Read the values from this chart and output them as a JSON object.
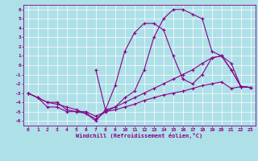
{
  "xlabel": "Windchill (Refroidissement éolien,°C)",
  "xlim": [
    -0.5,
    23.5
  ],
  "ylim": [
    -6.5,
    6.5
  ],
  "xticks": [
    0,
    1,
    2,
    3,
    4,
    5,
    6,
    7,
    8,
    9,
    10,
    11,
    12,
    13,
    14,
    15,
    16,
    17,
    18,
    19,
    20,
    21,
    22,
    23
  ],
  "yticks": [
    -6,
    -5,
    -4,
    -3,
    -2,
    -1,
    0,
    1,
    2,
    3,
    4,
    5,
    6
  ],
  "bg_color": "#aee0e8",
  "line_color": "#880088",
  "grid_color": "#ffffff",
  "line1_x": [
    0,
    1,
    2,
    3,
    4,
    5,
    6,
    7,
    8,
    9,
    10,
    11,
    12,
    13,
    14,
    15,
    16,
    17,
    18,
    19,
    20,
    21,
    22,
    23
  ],
  "line1_y": [
    -3.0,
    -3.5,
    -4.5,
    -4.5,
    -5.0,
    -5.0,
    -5.2,
    -5.8,
    -5.0,
    -4.8,
    -4.5,
    -4.2,
    -3.8,
    -3.5,
    -3.2,
    -3.0,
    -2.8,
    -2.5,
    -2.2,
    -2.0,
    -1.8,
    -2.5,
    -2.3,
    -2.4
  ],
  "line2_x": [
    0,
    1,
    2,
    3,
    4,
    5,
    6,
    7,
    8,
    9,
    10,
    11,
    12,
    13,
    14,
    15,
    16,
    17,
    18,
    19,
    20,
    21,
    22,
    23
  ],
  "line2_y": [
    -3.0,
    -3.5,
    -4.0,
    -4.0,
    -4.8,
    -5.0,
    -5.0,
    -5.5,
    -5.0,
    -4.5,
    -4.0,
    -3.5,
    -3.0,
    -2.5,
    -2.0,
    -1.5,
    -1.0,
    -0.5,
    0.2,
    0.8,
    1.0,
    0.2,
    -2.3,
    -2.4
  ],
  "line3_x": [
    0,
    1,
    2,
    3,
    4,
    5,
    6,
    7,
    8,
    9,
    10,
    11,
    12,
    13,
    14,
    15,
    16,
    17,
    18,
    19,
    20,
    21,
    22,
    23
  ],
  "line3_y": [
    -3.0,
    -3.5,
    -4.0,
    -4.2,
    -4.5,
    -4.8,
    -5.2,
    -6.0,
    -4.8,
    -4.5,
    -3.5,
    -2.8,
    -0.5,
    3.0,
    5.0,
    6.0,
    6.0,
    5.5,
    5.0,
    1.5,
    1.0,
    -0.5,
    -2.3,
    -2.4
  ],
  "line4_x": [
    7,
    8,
    9,
    10,
    11,
    12,
    13,
    14,
    15,
    16,
    17,
    18,
    19,
    20,
    21,
    22,
    23
  ],
  "line4_y": [
    -0.5,
    -4.8,
    -2.2,
    1.5,
    3.5,
    4.5,
    4.5,
    3.8,
    1.0,
    -1.5,
    -2.0,
    -1.0,
    0.8,
    1.0,
    -0.5,
    -2.3,
    -2.4
  ]
}
